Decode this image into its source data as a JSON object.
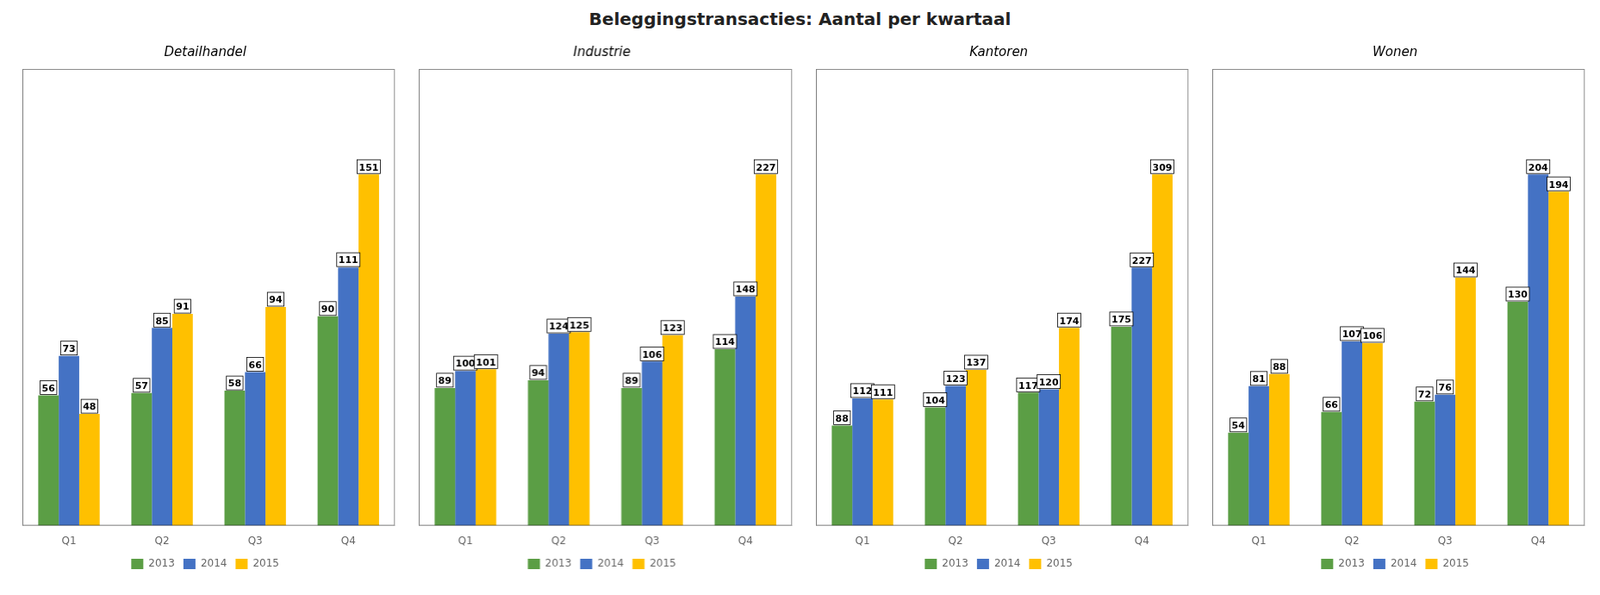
{
  "title": "Beleggingstransacties: Aantal per kwartaal",
  "chart_data": [
    {
      "type": "bar",
      "title": "Detailhandel",
      "categories": [
        "Q1",
        "Q2",
        "Q3",
        "Q4"
      ],
      "series": [
        {
          "name": "2013",
          "color": "#5b9e45",
          "values": [
            56,
            57,
            58,
            90
          ]
        },
        {
          "name": "2014",
          "color": "#4472c4",
          "values": [
            73,
            85,
            66,
            111
          ]
        },
        {
          "name": "2015",
          "color": "#ffc000",
          "values": [
            48,
            91,
            94,
            151
          ]
        }
      ],
      "ylim": [
        0,
        196.3
      ],
      "grid": false,
      "legend": "bottom",
      "data_labels": true,
      "tick_labels": "x"
    },
    {
      "type": "bar",
      "title": "Industrie",
      "categories": [
        "Q1",
        "Q2",
        "Q3",
        "Q4"
      ],
      "series": [
        {
          "name": "2013",
          "color": "#5b9e45",
          "values": [
            89,
            94,
            89,
            114
          ]
        },
        {
          "name": "2014",
          "color": "#4472c4",
          "values": [
            100,
            124,
            106,
            148
          ]
        },
        {
          "name": "2015",
          "color": "#ffc000",
          "values": [
            101,
            125,
            123,
            227
          ]
        }
      ],
      "ylim": [
        0,
        295.1
      ],
      "grid": false,
      "legend": "bottom",
      "data_labels": true,
      "tick_labels": "x"
    },
    {
      "type": "bar",
      "title": "Kantoren",
      "categories": [
        "Q1",
        "Q2",
        "Q3",
        "Q4"
      ],
      "series": [
        {
          "name": "2013",
          "color": "#5b9e45",
          "values": [
            88,
            104,
            117,
            175
          ]
        },
        {
          "name": "2014",
          "color": "#4472c4",
          "values": [
            112,
            123,
            120,
            227
          ]
        },
        {
          "name": "2015",
          "color": "#ffc000",
          "values": [
            111,
            137,
            174,
            309
          ]
        }
      ],
      "ylim": [
        0,
        401.7
      ],
      "grid": false,
      "legend": "bottom",
      "data_labels": true,
      "tick_labels": "x"
    },
    {
      "type": "bar",
      "title": "Wonen",
      "categories": [
        "Q1",
        "Q2",
        "Q3",
        "Q4"
      ],
      "series": [
        {
          "name": "2013",
          "color": "#5b9e45",
          "values": [
            54,
            66,
            72,
            130
          ]
        },
        {
          "name": "2014",
          "color": "#4472c4",
          "values": [
            81,
            107,
            76,
            204
          ]
        },
        {
          "name": "2015",
          "color": "#ffc000",
          "values": [
            88,
            106,
            144,
            194
          ]
        }
      ],
      "ylim": [
        0,
        265.2
      ],
      "grid": false,
      "legend": "bottom",
      "data_labels": true,
      "tick_labels": "x"
    }
  ]
}
